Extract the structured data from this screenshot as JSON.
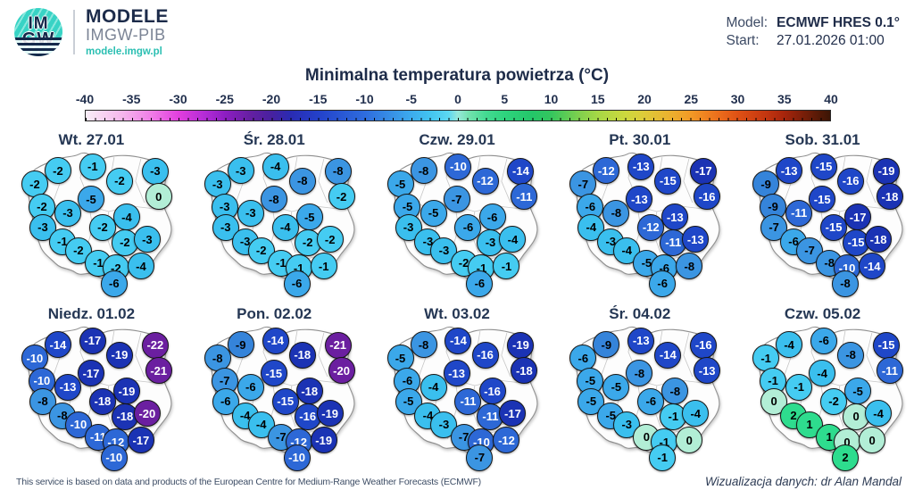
{
  "header": {
    "logo": {
      "line1": "IM",
      "line2": "GW"
    },
    "brand": {
      "title": "MODELE",
      "subtitle": "IMGW-PIB",
      "url": "modele.imgw.pl"
    },
    "model_label": "Model:",
    "model_value": "ECMWF HRES 0.1°",
    "start_label": "Start:",
    "start_value": "27.01.2026 01:00"
  },
  "footer": {
    "attribution": "This service is based on data and products of the European Centre for Medium-Range Weather Forecasts (ECMWF)",
    "credit": "Wizualizacja danych: dr Alan Mandal"
  },
  "chart_data": {
    "type": "scatter",
    "subtype": "temperature-bubble-map-grid",
    "title": "Minimalna temperatura powietrza (°C)",
    "unit": "°C",
    "colorbar": {
      "min": -40,
      "max": 40,
      "tick_step": 5,
      "ticks": [
        -40,
        -35,
        -30,
        -25,
        -20,
        -15,
        -10,
        -5,
        0,
        5,
        10,
        15,
        20,
        25,
        30,
        35,
        40
      ],
      "gradient_stops": [
        {
          "pos": 0,
          "color": "#f9eef7"
        },
        {
          "pos": 5,
          "color": "#f5b5ec"
        },
        {
          "pos": 9,
          "color": "#ef7ae6"
        },
        {
          "pos": 12.5,
          "color": "#e23ede"
        },
        {
          "pos": 16,
          "color": "#b32cd6"
        },
        {
          "pos": 18.75,
          "color": "#8d1ec2"
        },
        {
          "pos": 22,
          "color": "#661fa2"
        },
        {
          "pos": 25,
          "color": "#47219f"
        },
        {
          "pos": 27.5,
          "color": "#2a2bb2"
        },
        {
          "pos": 31.25,
          "color": "#2341ca"
        },
        {
          "pos": 35,
          "color": "#2a5cd6"
        },
        {
          "pos": 37.5,
          "color": "#2e6cde"
        },
        {
          "pos": 41.25,
          "color": "#3892e6"
        },
        {
          "pos": 43.75,
          "color": "#3cacee"
        },
        {
          "pos": 46.25,
          "color": "#42c4f0"
        },
        {
          "pos": 48.75,
          "color": "#5cd8f2"
        },
        {
          "pos": 50,
          "color": "#96e8da"
        },
        {
          "pos": 51.5,
          "color": "#72e2ae"
        },
        {
          "pos": 53.75,
          "color": "#44da92"
        },
        {
          "pos": 56.25,
          "color": "#2ed47e"
        },
        {
          "pos": 60,
          "color": "#24c669"
        },
        {
          "pos": 62.5,
          "color": "#34c65e"
        },
        {
          "pos": 66.25,
          "color": "#7ed04e"
        },
        {
          "pos": 68.75,
          "color": "#a6d846"
        },
        {
          "pos": 72.5,
          "color": "#cdd83e"
        },
        {
          "pos": 75,
          "color": "#decb39"
        },
        {
          "pos": 78.75,
          "color": "#ecaf2e"
        },
        {
          "pos": 81.25,
          "color": "#f29a26"
        },
        {
          "pos": 85,
          "color": "#ec6e1c"
        },
        {
          "pos": 87.5,
          "color": "#e05215"
        },
        {
          "pos": 91.25,
          "color": "#c53710"
        },
        {
          "pos": 93.75,
          "color": "#a8250c"
        },
        {
          "pos": 97,
          "color": "#6f1d08"
        },
        {
          "pos": 100,
          "color": "#3a1505"
        }
      ]
    },
    "value_colors": [
      {
        "min": 1,
        "bg": "#2edc8e",
        "fg": "#000000"
      },
      {
        "min": 0,
        "bg": "#b2eed6",
        "fg": "#000000"
      },
      {
        "min": -2,
        "bg": "#45ccf2",
        "fg": "#000000"
      },
      {
        "min": -4,
        "bg": "#3abfee",
        "fg": "#000000"
      },
      {
        "min": -6,
        "bg": "#3ba8ea",
        "fg": "#000000"
      },
      {
        "min": -8,
        "bg": "#3b95e2",
        "fg": "#000000"
      },
      {
        "min": -9,
        "bg": "#3584da",
        "fg": "#000000"
      },
      {
        "min": -12,
        "bg": "#2d68d6",
        "fg": "#ffffff"
      },
      {
        "min": -16,
        "bg": "#1f47c8",
        "fg": "#ffffff"
      },
      {
        "min": -19,
        "bg": "#1b33b4",
        "fg": "#ffffff"
      },
      {
        "min": -999,
        "bg": "#6b1fa0",
        "fg": "#ffffff"
      }
    ],
    "bubble_positions_pct": [
      [
        31.7,
        23.6
      ],
      [
        50.7,
        21.5
      ],
      [
        84.9,
        24.1
      ],
      [
        19.0,
        31.3
      ],
      [
        65.4,
        29.7
      ],
      [
        49.8,
        40.0
      ],
      [
        86.8,
        38.5
      ],
      [
        22.9,
        44.6
      ],
      [
        37.1,
        48.2
      ],
      [
        69.3,
        50.3
      ],
      [
        23.4,
        56.4
      ],
      [
        56.1,
        56.4
      ],
      [
        34.1,
        64.6
      ],
      [
        68.3,
        65.1
      ],
      [
        80.5,
        63.1
      ],
      [
        42.9,
        69.7
      ],
      [
        53.7,
        76.9
      ],
      [
        63.4,
        79.5
      ],
      [
        77.1,
        78.5
      ],
      [
        62.4,
        88.7
      ]
    ],
    "panels": [
      {
        "label": "Wt. 27.01",
        "values": [
          -2,
          -1,
          -3,
          -2,
          -2,
          -5,
          0,
          -2,
          -3,
          -4,
          -3,
          -2,
          -1,
          -2,
          -3,
          -2,
          -1,
          -2,
          -4,
          -6
        ]
      },
      {
        "label": "Śr. 28.01",
        "values": [
          -3,
          -4,
          -8,
          -3,
          -8,
          -8,
          -2,
          -3,
          -3,
          -5,
          -3,
          -4,
          -3,
          -2,
          -2,
          -2,
          -1,
          -1,
          -1,
          -6
        ]
      },
      {
        "label": "Czw. 29.01",
        "values": [
          -8,
          -10,
          -14,
          -5,
          -12,
          -7,
          -11,
          -5,
          -5,
          -6,
          -3,
          -6,
          -3,
          -3,
          -4,
          -3,
          -2,
          -1,
          -1,
          -6
        ]
      },
      {
        "label": "Pt. 30.01",
        "values": [
          -12,
          -13,
          -17,
          -7,
          -15,
          -13,
          -16,
          -6,
          -8,
          -13,
          -4,
          -12,
          -3,
          -11,
          -13,
          -4,
          -5,
          -6,
          -8,
          -6
        ]
      },
      {
        "label": "Sob. 31.01",
        "values": [
          -13,
          -15,
          -19,
          -9,
          -16,
          -15,
          -18,
          -9,
          -11,
          -17,
          -7,
          -15,
          -6,
          -15,
          -18,
          -7,
          -8,
          -10,
          -14,
          -8
        ]
      },
      {
        "label": "Niedz. 01.02",
        "values": [
          -14,
          -17,
          -22,
          -10,
          -19,
          -17,
          -21,
          -10,
          -13,
          -19,
          -8,
          -18,
          -8,
          -18,
          -20,
          -10,
          -11,
          -12,
          -17,
          -10
        ]
      },
      {
        "label": "Pon. 02.02",
        "values": [
          -9,
          -14,
          -21,
          -8,
          -18,
          -15,
          -20,
          -7,
          -6,
          -18,
          -6,
          -15,
          -4,
          -16,
          -19,
          -4,
          -7,
          -12,
          -19,
          -10
        ]
      },
      {
        "label": "Wt. 03.02",
        "values": [
          -8,
          -14,
          -19,
          -5,
          -16,
          -13,
          -18,
          -6,
          -4,
          -16,
          -5,
          -11,
          -4,
          -11,
          -17,
          -3,
          -7,
          -10,
          -12,
          -7
        ]
      },
      {
        "label": "Śr. 04.02",
        "values": [
          -9,
          -13,
          -16,
          -6,
          -14,
          -8,
          -13,
          -5,
          -5,
          -8,
          -5,
          -6,
          -5,
          -1,
          -4,
          -3,
          0,
          -1,
          0,
          -1
        ]
      },
      {
        "label": "Czw. 05.02",
        "values": [
          -4,
          -6,
          -15,
          -1,
          -8,
          -4,
          -11,
          -1,
          -1,
          -5,
          0,
          -2,
          2,
          0,
          -4,
          1,
          1,
          0,
          0,
          2
        ]
      }
    ]
  }
}
